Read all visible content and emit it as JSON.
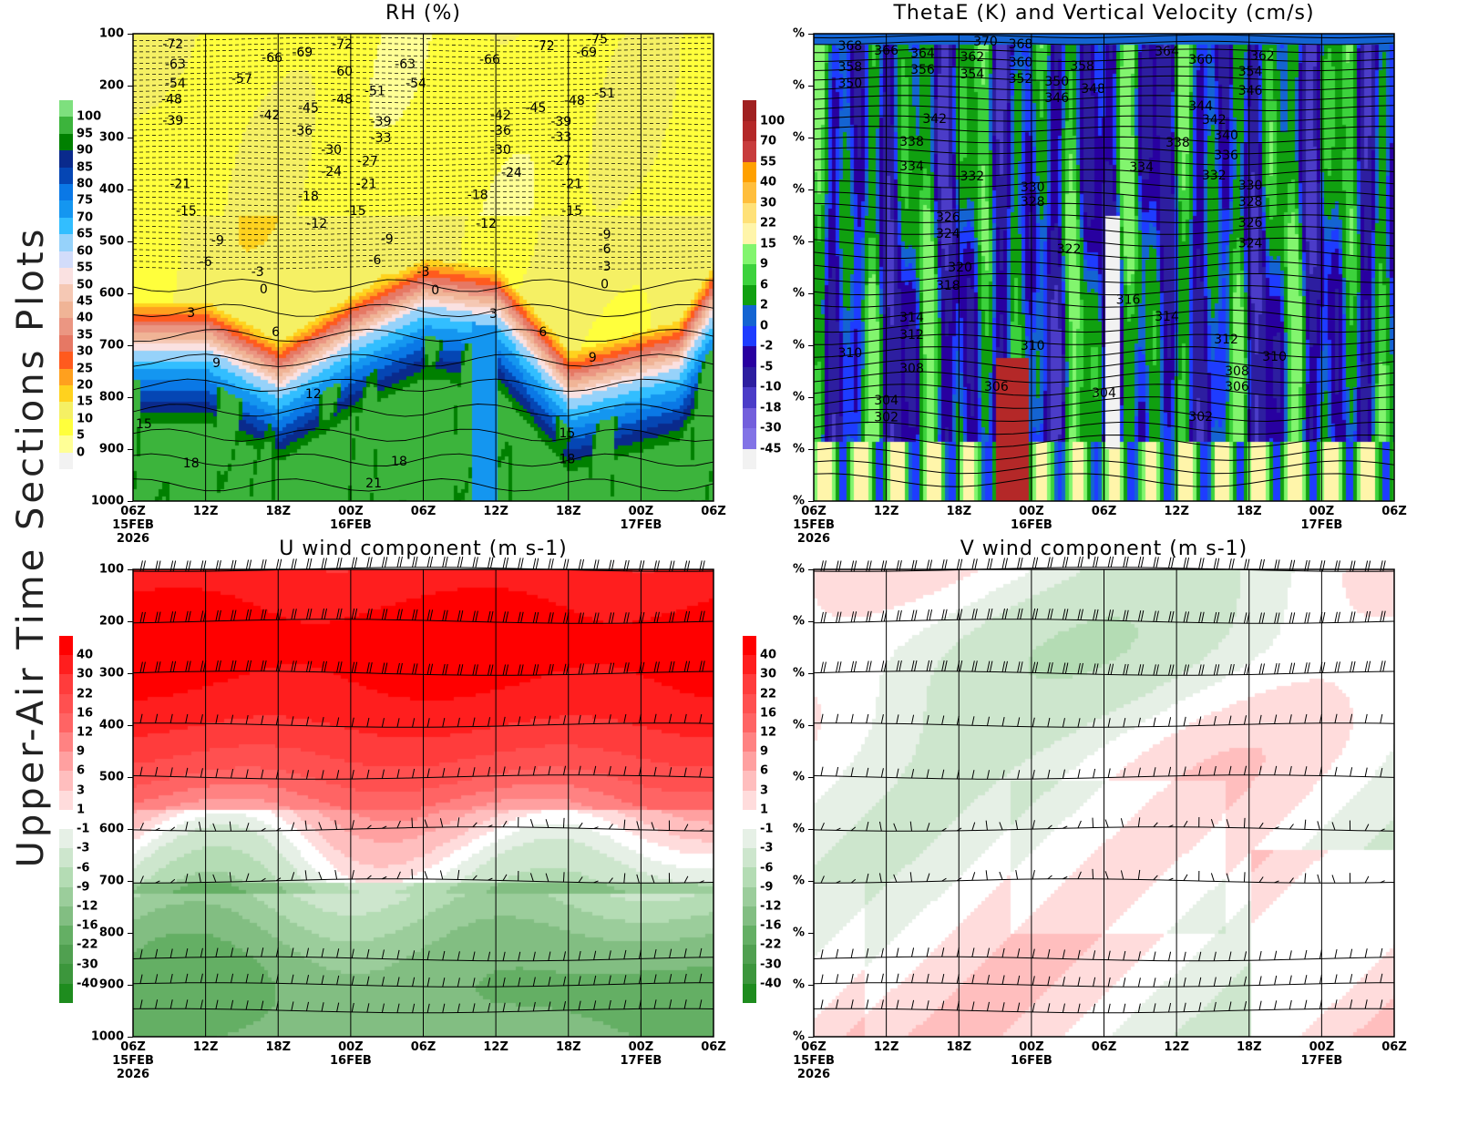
{
  "side_label": "Upper-Air Time Sections Plots",
  "x_ticks": [
    "06Z",
    "12Z",
    "18Z",
    "00Z",
    "06Z",
    "12Z",
    "18Z",
    "00Z",
    "06Z"
  ],
  "x_subticks": {
    "0": "15FEB\n2026",
    "3": "16FEB",
    "7": "17FEB"
  },
  "chart_data": [
    {
      "type": "heatmap",
      "title": "RH (%)",
      "xlabel": "",
      "ylabel": "",
      "x_hours_range": [
        0,
        48
      ],
      "y_ticks": [
        "100",
        "200",
        "300",
        "400",
        "500",
        "600",
        "700",
        "800",
        "900",
        "1000"
      ],
      "ylim": [
        100,
        1000
      ],
      "colorbar": {
        "labels": [
          "100",
          "95",
          "90",
          "85",
          "80",
          "75",
          "70",
          "65",
          "60",
          "55",
          "50",
          "45",
          "40",
          "35",
          "30",
          "25",
          "20",
          "15",
          "10",
          "5",
          "0"
        ],
        "colors": [
          "#7ee07e",
          "#3cb43c",
          "#008000",
          "#0a2a8c",
          "#0546b4",
          "#0a78e6",
          "#1496f0",
          "#32beff",
          "#96d2fa",
          "#d2dcfa",
          "#fae1e1",
          "#f5c8b4",
          "#f0b496",
          "#eb9682",
          "#e67864",
          "#ff5a1e",
          "#ffa01e",
          "#ffd21e",
          "#f5f064",
          "#ffff3c",
          "#ffff96",
          "#f2f2f2"
        ]
      },
      "contour_labels": [
        {
          "v": "-72",
          "h": 3.3,
          "p": 119
        },
        {
          "v": "-66",
          "h": 11.5,
          "p": 146
        },
        {
          "v": "-69",
          "h": 14,
          "p": 135
        },
        {
          "v": "-72",
          "h": 17.3,
          "p": 119
        },
        {
          "v": "-63",
          "h": 22.5,
          "p": 158
        },
        {
          "v": "-66",
          "h": 29.5,
          "p": 149
        },
        {
          "v": "-72",
          "h": 34,
          "p": 123
        },
        {
          "v": "-75",
          "h": 38.4,
          "p": 110
        },
        {
          "v": "-69",
          "h": 37.5,
          "p": 135
        },
        {
          "v": "-63",
          "h": 3.5,
          "p": 158
        },
        {
          "v": "-57",
          "h": 9,
          "p": 186
        },
        {
          "v": "-60",
          "h": 17.3,
          "p": 172
        },
        {
          "v": "-54",
          "h": 3.5,
          "p": 195
        },
        {
          "v": "-54",
          "h": 23.4,
          "p": 195
        },
        {
          "v": "-51",
          "h": 20,
          "p": 210
        },
        {
          "v": "-51",
          "h": 39,
          "p": 214
        },
        {
          "v": "-48",
          "h": 3.2,
          "p": 225
        },
        {
          "v": "-48",
          "h": 17.3,
          "p": 225
        },
        {
          "v": "-48",
          "h": 36.5,
          "p": 228
        },
        {
          "v": "-45",
          "h": 14.5,
          "p": 242
        },
        {
          "v": "-45",
          "h": 33.3,
          "p": 242
        },
        {
          "v": "-42",
          "h": 11.3,
          "p": 256
        },
        {
          "v": "-42",
          "h": 30.4,
          "p": 256
        },
        {
          "v": "-39",
          "h": 3.3,
          "p": 267
        },
        {
          "v": "-39",
          "h": 20.5,
          "p": 268
        },
        {
          "v": "-39",
          "h": 35.4,
          "p": 268
        },
        {
          "v": "-36",
          "h": 14,
          "p": 286
        },
        {
          "v": "-36",
          "h": 30.4,
          "p": 286
        },
        {
          "v": "-33",
          "h": 20.5,
          "p": 300
        },
        {
          "v": "-33",
          "h": 35.4,
          "p": 298
        },
        {
          "v": "-30",
          "h": 16.4,
          "p": 323
        },
        {
          "v": "-30",
          "h": 30.4,
          "p": 323
        },
        {
          "v": "-27",
          "h": 19.4,
          "p": 345
        },
        {
          "v": "-27",
          "h": 35.4,
          "p": 344
        },
        {
          "v": "-24",
          "h": 16.4,
          "p": 365
        },
        {
          "v": "-24",
          "h": 31.3,
          "p": 367
        },
        {
          "v": "-21",
          "h": 3.9,
          "p": 389
        },
        {
          "v": "-21",
          "h": 19.3,
          "p": 389
        },
        {
          "v": "-21",
          "h": 36.3,
          "p": 389
        },
        {
          "v": "-18",
          "h": 14.5,
          "p": 412
        },
        {
          "v": "-18",
          "h": 28.5,
          "p": 410
        },
        {
          "v": "-15",
          "h": 4.4,
          "p": 440
        },
        {
          "v": "-15",
          "h": 18.4,
          "p": 440
        },
        {
          "v": "-15",
          "h": 36.3,
          "p": 440
        },
        {
          "v": "-12",
          "h": 15.2,
          "p": 465
        },
        {
          "v": "-12",
          "h": 29.2,
          "p": 465
        },
        {
          "v": "-9",
          "h": 7,
          "p": 497
        },
        {
          "v": "-9",
          "h": 21,
          "p": 495
        },
        {
          "v": "-9",
          "h": 39,
          "p": 486
        },
        {
          "v": "-6",
          "h": 6,
          "p": 539
        },
        {
          "v": "-6",
          "h": 20,
          "p": 535
        },
        {
          "v": "-6",
          "h": 39,
          "p": 514
        },
        {
          "v": "-3",
          "h": 10.3,
          "p": 558
        },
        {
          "v": "-3",
          "h": 24,
          "p": 558
        },
        {
          "v": "-3",
          "h": 39,
          "p": 547
        },
        {
          "v": "0",
          "h": 10.8,
          "p": 591
        },
        {
          "v": "0",
          "h": 25,
          "p": 593
        },
        {
          "v": "0",
          "h": 39,
          "p": 582
        },
        {
          "v": "3",
          "h": 4.8,
          "p": 637
        },
        {
          "v": "3",
          "h": 29.8,
          "p": 639
        },
        {
          "v": "6",
          "h": 11.8,
          "p": 674
        },
        {
          "v": "6",
          "h": 33.9,
          "p": 674
        },
        {
          "v": "9",
          "h": 6.9,
          "p": 733
        },
        {
          "v": "9",
          "h": 38,
          "p": 723
        },
        {
          "v": "12",
          "h": 14.9,
          "p": 793
        },
        {
          "v": "15",
          "h": 0.9,
          "p": 851
        },
        {
          "v": "15",
          "h": 35.9,
          "p": 868
        },
        {
          "v": "18",
          "h": 4.8,
          "p": 926
        },
        {
          "v": "18",
          "h": 22,
          "p": 923
        },
        {
          "v": "18",
          "h": 35.9,
          "p": 918
        },
        {
          "v": "21",
          "h": 19.9,
          "p": 965
        }
      ]
    },
    {
      "type": "heatmap",
      "title": "ThetaE (K) and Vertical Velocity (cm/s)",
      "xlabel": "",
      "ylabel": "",
      "x_hours_range": [
        0,
        48
      ],
      "y_ticks": [
        "%",
        "%",
        "%",
        "%",
        "%",
        "%",
        "%",
        "%",
        "%",
        "%"
      ],
      "colorbar": {
        "labels": [
          "100",
          "70",
          "55",
          "40",
          "30",
          "22",
          "15",
          "9",
          "6",
          "2",
          "0",
          "-2",
          "-5",
          "-10",
          "-18",
          "-30",
          "-45"
        ],
        "colors": [
          "#a02020",
          "#b42828",
          "#c83c3c",
          "#ffa000",
          "#ffbe3c",
          "#ffe178",
          "#fff5aa",
          "#82f56e",
          "#3cd23c",
          "#10a010",
          "#1464d2",
          "#1e3cff",
          "#2800a0",
          "#2d1ea0",
          "#4b3cc8",
          "#735fdc",
          "#8273e6",
          "#f2f2f2"
        ]
      },
      "contour_labels": [
        {
          "v": "368",
          "h": 3,
          "p": 123
        },
        {
          "v": "366",
          "h": 6,
          "p": 132
        },
        {
          "v": "364",
          "h": 9,
          "p": 137
        },
        {
          "v": "370",
          "h": 14.2,
          "p": 114
        },
        {
          "v": "368",
          "h": 17.1,
          "p": 119
        },
        {
          "v": "362",
          "h": 13.1,
          "p": 144
        },
        {
          "v": "360",
          "h": 17.1,
          "p": 154
        },
        {
          "v": "364",
          "h": 29.2,
          "p": 133
        },
        {
          "v": "360",
          "h": 32,
          "p": 149
        },
        {
          "v": "362",
          "h": 37.1,
          "p": 142
        },
        {
          "v": "358",
          "h": 3,
          "p": 163
        },
        {
          "v": "356",
          "h": 9,
          "p": 168
        },
        {
          "v": "354",
          "h": 13.1,
          "p": 177
        },
        {
          "v": "352",
          "h": 17.1,
          "p": 186
        },
        {
          "v": "350",
          "h": 20.1,
          "p": 191
        },
        {
          "v": "358",
          "h": 22.2,
          "p": 161
        },
        {
          "v": "354",
          "h": 36.1,
          "p": 172
        },
        {
          "v": "350",
          "h": 3,
          "p": 195
        },
        {
          "v": "346",
          "h": 20.1,
          "p": 223
        },
        {
          "v": "348",
          "h": 23.1,
          "p": 205
        },
        {
          "v": "346",
          "h": 36.1,
          "p": 209
        },
        {
          "v": "344",
          "h": 32,
          "p": 239
        },
        {
          "v": "342",
          "h": 33.1,
          "p": 265
        },
        {
          "v": "342",
          "h": 10,
          "p": 263
        },
        {
          "v": "340",
          "h": 34.1,
          "p": 295
        },
        {
          "v": "338",
          "h": 8.1,
          "p": 307
        },
        {
          "v": "338",
          "h": 30.1,
          "p": 309
        },
        {
          "v": "336",
          "h": 34.1,
          "p": 333
        },
        {
          "v": "334",
          "h": 8.1,
          "p": 354
        },
        {
          "v": "334",
          "h": 27.1,
          "p": 356
        },
        {
          "v": "332",
          "h": 13.1,
          "p": 374
        },
        {
          "v": "332",
          "h": 33.1,
          "p": 372
        },
        {
          "v": "330",
          "h": 18.1,
          "p": 395
        },
        {
          "v": "330",
          "h": 36.1,
          "p": 391
        },
        {
          "v": "328",
          "h": 18.1,
          "p": 423
        },
        {
          "v": "328",
          "h": 36.1,
          "p": 423
        },
        {
          "v": "326",
          "h": 11.1,
          "p": 453
        },
        {
          "v": "326",
          "h": 36.1,
          "p": 463
        },
        {
          "v": "324",
          "h": 11.1,
          "p": 484
        },
        {
          "v": "324",
          "h": 36.1,
          "p": 503
        },
        {
          "v": "322",
          "h": 21.1,
          "p": 514
        },
        {
          "v": "320",
          "h": 12.1,
          "p": 549
        },
        {
          "v": "318",
          "h": 11.1,
          "p": 584
        },
        {
          "v": "316",
          "h": 26,
          "p": 611
        },
        {
          "v": "314",
          "h": 8.1,
          "p": 646
        },
        {
          "v": "314",
          "h": 29.2,
          "p": 644
        },
        {
          "v": "312",
          "h": 8.1,
          "p": 679
        },
        {
          "v": "312",
          "h": 34.1,
          "p": 688
        },
        {
          "v": "310",
          "h": 3,
          "p": 714
        },
        {
          "v": "310",
          "h": 18.1,
          "p": 700
        },
        {
          "v": "310",
          "h": 38.1,
          "p": 721
        },
        {
          "v": "308",
          "h": 8.1,
          "p": 744
        },
        {
          "v": "308",
          "h": 35,
          "p": 749
        },
        {
          "v": "306",
          "h": 15.1,
          "p": 779
        },
        {
          "v": "306",
          "h": 35,
          "p": 779
        },
        {
          "v": "304",
          "h": 6,
          "p": 805
        },
        {
          "v": "304",
          "h": 24,
          "p": 791
        },
        {
          "v": "302",
          "h": 6,
          "p": 838
        },
        {
          "v": "302",
          "h": 32,
          "p": 837
        }
      ]
    },
    {
      "type": "heatmap",
      "title": "U wind component (m s-1)",
      "xlabel": "",
      "ylabel": "",
      "x_hours_range": [
        0,
        48
      ],
      "y_ticks": [
        "100",
        "200",
        "300",
        "400",
        "500",
        "600",
        "700",
        "800",
        "900",
        "1000"
      ],
      "ylim": [
        100,
        1000
      ],
      "barb_levels": [
        100,
        200,
        300,
        400,
        500,
        600,
        700,
        850,
        900,
        950
      ],
      "colorbar": {
        "labels": [
          "40",
          "30",
          "22",
          "16",
          "12",
          "9",
          "6",
          "3",
          "1",
          "-1",
          "-3",
          "-6",
          "-9",
          "-12",
          "-16",
          "-22",
          "-30",
          "-40"
        ],
        "colors": [
          "#ff0000",
          "#ff1e1e",
          "#ff3c3c",
          "#ff5050",
          "#ff6464",
          "#ff8282",
          "#ffa0a0",
          "#ffbebe",
          "#ffdcdc",
          "#ffffff",
          "#e6f0e6",
          "#cde6cd",
          "#b4dcb4",
          "#9bcd9b",
          "#82be82",
          "#64af64",
          "#50a050",
          "#3c963c",
          "#1e8c1e"
        ]
      },
      "contour_labels": []
    },
    {
      "type": "heatmap",
      "title": "V wind component (m s-1)",
      "xlabel": "",
      "ylabel": "",
      "x_hours_range": [
        0,
        48
      ],
      "y_ticks": [
        "%",
        "%",
        "%",
        "%",
        "%",
        "%",
        "%",
        "%",
        "%",
        "%"
      ],
      "barb_levels": [
        100,
        200,
        300,
        400,
        500,
        600,
        700,
        850,
        900,
        950
      ],
      "colorbar": {
        "labels": [
          "40",
          "30",
          "22",
          "16",
          "12",
          "9",
          "6",
          "3",
          "1",
          "-1",
          "-3",
          "-6",
          "-9",
          "-12",
          "-16",
          "-22",
          "-30",
          "-40"
        ],
        "colors": [
          "#ff0000",
          "#ff1e1e",
          "#ff3c3c",
          "#ff5050",
          "#ff6464",
          "#ff8282",
          "#ffa0a0",
          "#ffbebe",
          "#ffdcdc",
          "#ffffff",
          "#e6f0e6",
          "#cde6cd",
          "#b4dcb4",
          "#9bcd9b",
          "#82be82",
          "#64af64",
          "#50a050",
          "#3c963c",
          "#1e8c1e"
        ]
      },
      "contour_labels": []
    }
  ]
}
